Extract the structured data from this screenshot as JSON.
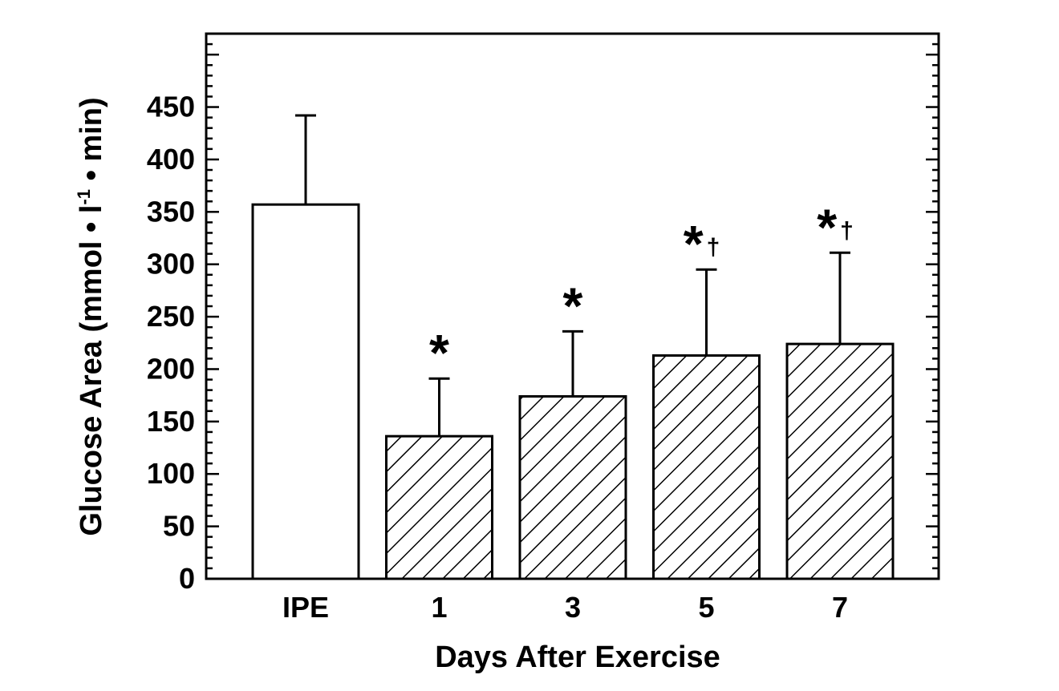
{
  "chart_data": {
    "type": "bar",
    "title": "",
    "xlabel": "Days After Exercise",
    "ylabel_parts": {
      "main": "Glucose Area (mmol",
      "unit_l": "l",
      "exponent": "-1",
      "tail": "min)"
    },
    "ylim": [
      0,
      520
    ],
    "yticks": [
      0,
      50,
      100,
      150,
      200,
      250,
      300,
      350,
      400,
      450
    ],
    "categories": [
      "IPE",
      "1",
      "3",
      "5",
      "7"
    ],
    "values": [
      357,
      136,
      174,
      213,
      224
    ],
    "errors": [
      85,
      55,
      62,
      82,
      87
    ],
    "fills": [
      "open",
      "hatched",
      "hatched",
      "hatched",
      "hatched"
    ],
    "annotations": [
      "",
      "*",
      "*",
      "*†",
      "*†"
    ],
    "grid": false,
    "legend": "none"
  }
}
